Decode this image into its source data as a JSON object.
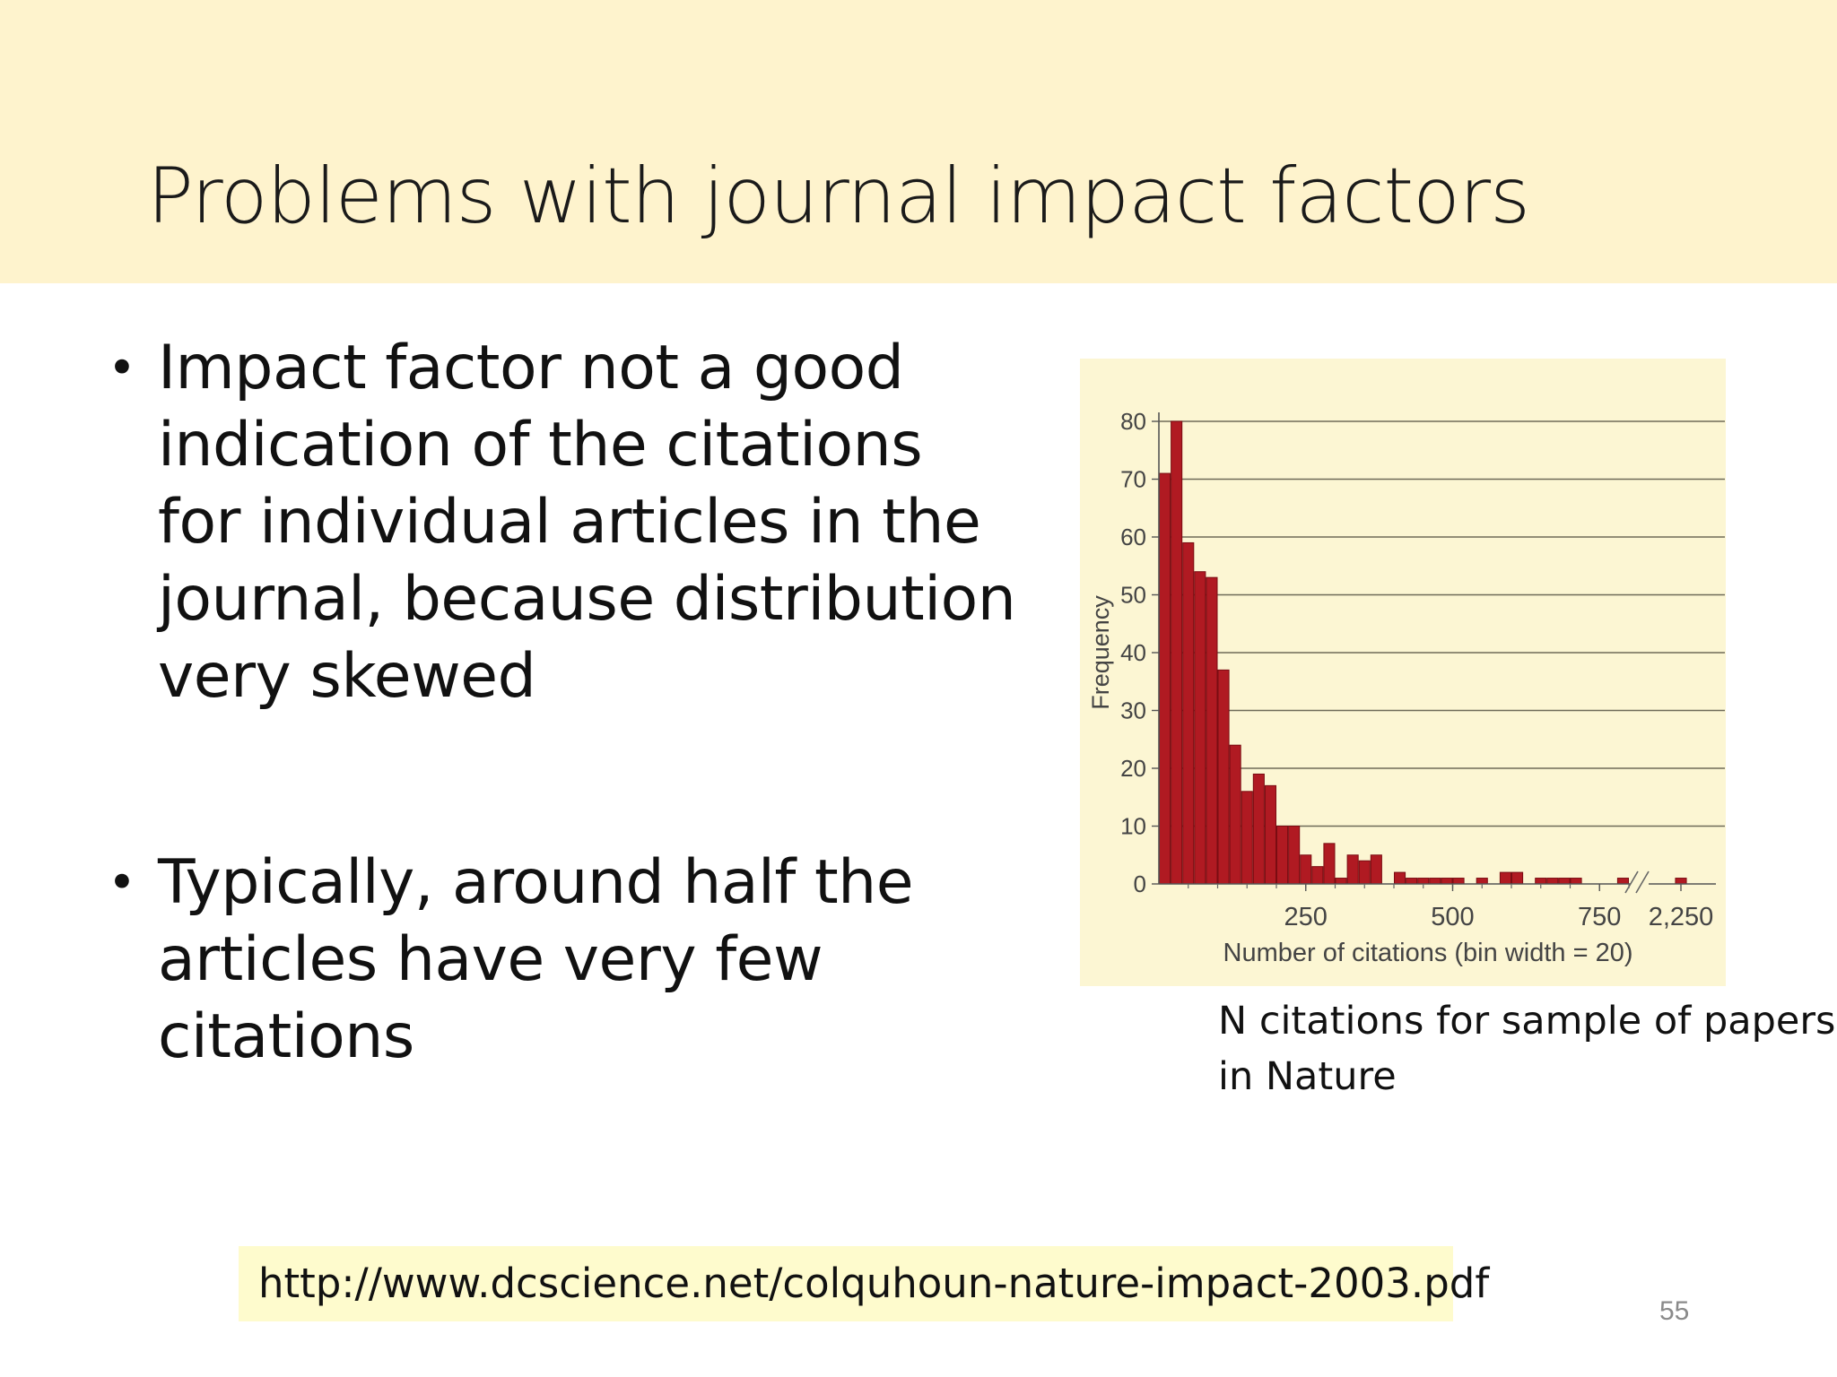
{
  "slide": {
    "title": "Problems with journal impact factors",
    "page_number": "55"
  },
  "bullets": [
    {
      "text": "Impact factor not a good indication of the citations for individual articles in the journal, because distribution very skewed"
    },
    {
      "text": "Typically, around half the articles have very few citations"
    }
  ],
  "caption": "N citations for sample of papers in Nature",
  "source_url": "http://www.dcscience.net/colquhoun-nature-impact-2003.pdf",
  "colors": {
    "title_band": "#fef3cd",
    "chart_background": "#fcf6d3",
    "bar_fill": "#b01a22",
    "bar_stroke": "#7a0c12",
    "url_highlight": "#fefbcd"
  },
  "chart_data": {
    "type": "bar",
    "title": "",
    "xlabel": "Number of citations (bin width = 20)",
    "ylabel": "Frequency",
    "ylim": [
      0,
      80
    ],
    "yticks": [
      0,
      10,
      20,
      30,
      40,
      50,
      60,
      70,
      80
    ],
    "xticks": [
      {
        "value": 250,
        "label": "250"
      },
      {
        "value": 500,
        "label": "500"
      },
      {
        "value": 750,
        "label": "750"
      },
      {
        "value": 2250,
        "label": "2,250"
      }
    ],
    "axis_break": "//",
    "bin_width": 20,
    "grid": true,
    "series": [
      {
        "bins": [
          {
            "x": 10,
            "value": 71
          },
          {
            "x": 30,
            "value": 80
          },
          {
            "x": 50,
            "value": 59
          },
          {
            "x": 70,
            "value": 54
          },
          {
            "x": 90,
            "value": 53
          },
          {
            "x": 110,
            "value": 37
          },
          {
            "x": 130,
            "value": 24
          },
          {
            "x": 150,
            "value": 16
          },
          {
            "x": 170,
            "value": 19
          },
          {
            "x": 190,
            "value": 17
          },
          {
            "x": 210,
            "value": 10
          },
          {
            "x": 230,
            "value": 10
          },
          {
            "x": 250,
            "value": 5
          },
          {
            "x": 270,
            "value": 3
          },
          {
            "x": 290,
            "value": 7
          },
          {
            "x": 310,
            "value": 1
          },
          {
            "x": 330,
            "value": 5
          },
          {
            "x": 350,
            "value": 4
          },
          {
            "x": 370,
            "value": 5
          },
          {
            "x": 390,
            "value": 0
          },
          {
            "x": 410,
            "value": 2
          },
          {
            "x": 430,
            "value": 1
          },
          {
            "x": 450,
            "value": 1
          },
          {
            "x": 470,
            "value": 1
          },
          {
            "x": 490,
            "value": 1
          },
          {
            "x": 510,
            "value": 1
          },
          {
            "x": 530,
            "value": 0
          },
          {
            "x": 550,
            "value": 1
          },
          {
            "x": 570,
            "value": 0
          },
          {
            "x": 590,
            "value": 2
          },
          {
            "x": 610,
            "value": 2
          },
          {
            "x": 630,
            "value": 0
          },
          {
            "x": 650,
            "value": 1
          },
          {
            "x": 670,
            "value": 1
          },
          {
            "x": 690,
            "value": 1
          },
          {
            "x": 710,
            "value": 1
          },
          {
            "x": 730,
            "value": 0
          },
          {
            "x": 750,
            "value": 0
          },
          {
            "x": 770,
            "value": 0
          },
          {
            "x": 790,
            "value": 1
          },
          {
            "x": 2250,
            "value": 1
          }
        ]
      }
    ]
  }
}
